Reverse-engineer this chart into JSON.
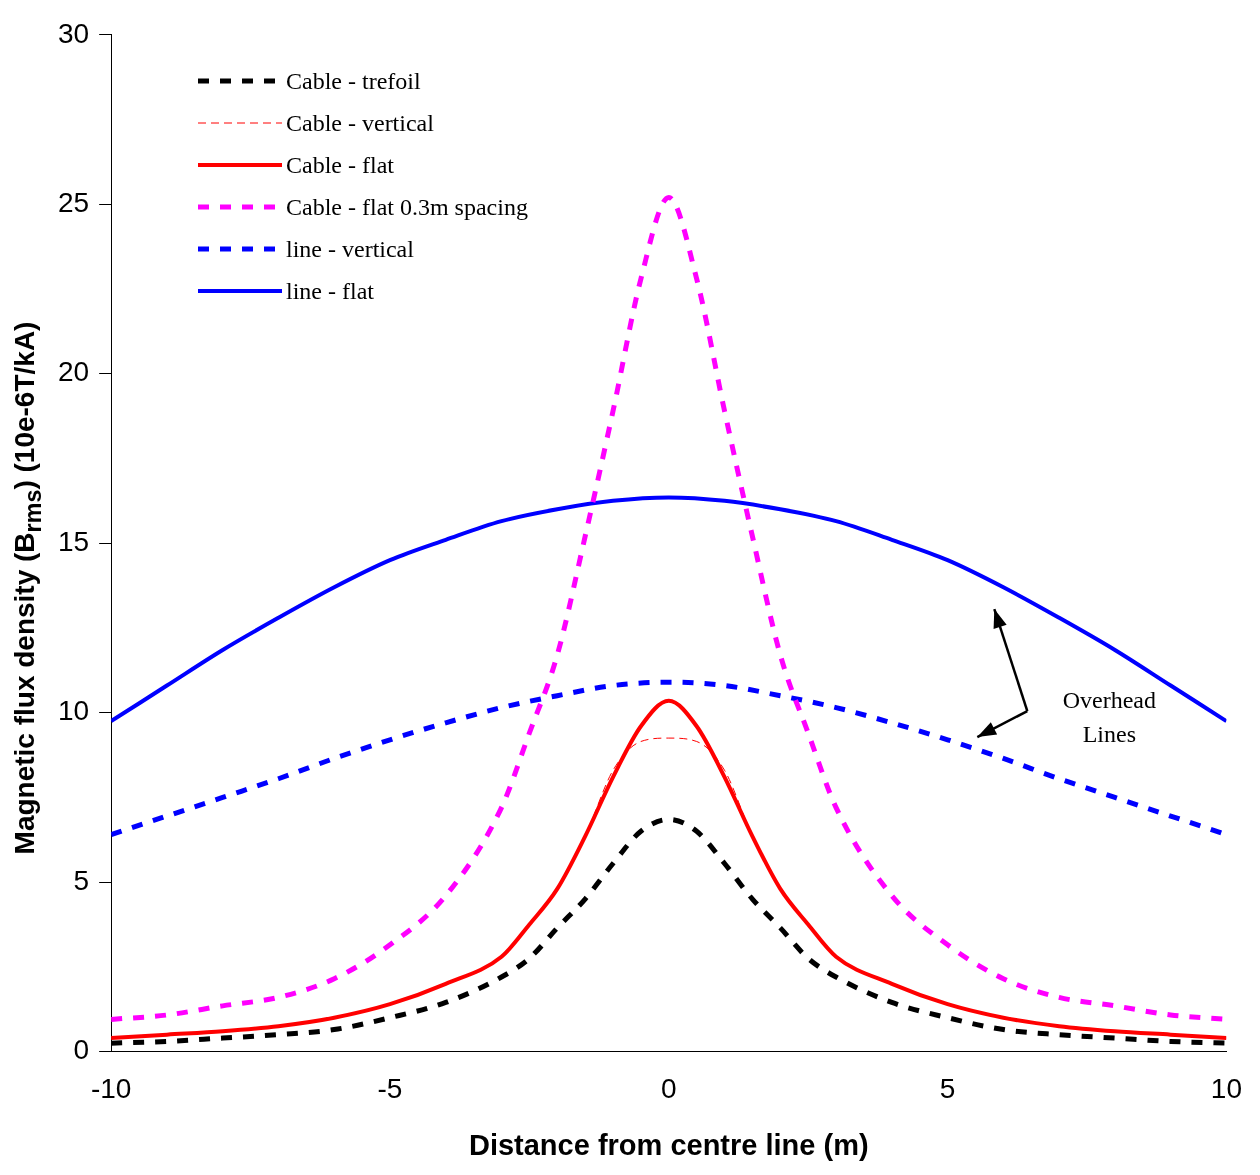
{
  "chart_data": {
    "type": "line",
    "xlabel": "Distance from centre line (m)",
    "ylabel": "Magnetic flux density (B$_{rms}$) (10e-6T/kA)",
    "xlim": [
      -10,
      10
    ],
    "xticks": [
      -10,
      -5,
      0,
      5,
      10
    ],
    "ylim": [
      0,
      30
    ],
    "yticks": [
      0,
      5,
      10,
      15,
      20,
      25,
      30
    ],
    "grid": false,
    "legend": "top left",
    "marker": "none",
    "annotations": [
      "Overhead Lines"
    ],
    "series": [
      {
        "name": "Cable - trefoil",
        "color": "#000000",
        "line_style": "dotted",
        "x": [
          -10,
          -9,
          -8,
          -7,
          -6,
          -5,
          -4,
          -3,
          -2.5,
          -2,
          -1.5,
          -1,
          -0.5,
          0,
          0.5,
          1,
          1.5,
          2,
          2.5,
          3,
          4,
          5,
          6,
          7,
          8,
          9,
          10
        ],
        "values": [
          0.25,
          0.3,
          0.4,
          0.5,
          0.65,
          1.0,
          1.45,
          2.2,
          2.75,
          3.65,
          4.5,
          5.55,
          6.5,
          6.85,
          6.5,
          5.55,
          4.5,
          3.65,
          2.75,
          2.2,
          1.45,
          1.0,
          0.65,
          0.5,
          0.4,
          0.3,
          0.25
        ]
      },
      {
        "name": "Cable - vertical",
        "color": "#ff0000",
        "line_style": "dashed",
        "x": [
          -10,
          -9,
          -8,
          -7,
          -6,
          -5,
          -4,
          -3,
          -2.5,
          -2,
          -1.5,
          -1,
          -0.5,
          0,
          0.5,
          1,
          1.5,
          2,
          2.5,
          3,
          4,
          5,
          6,
          7,
          8,
          9,
          10
        ],
        "values": [
          0.4,
          0.5,
          0.6,
          0.75,
          1.0,
          1.4,
          2.0,
          2.8,
          3.75,
          4.8,
          6.35,
          8.3,
          9.15,
          9.25,
          9.15,
          8.3,
          6.35,
          4.8,
          3.75,
          2.8,
          2.0,
          1.4,
          1.0,
          0.75,
          0.6,
          0.5,
          0.4
        ]
      },
      {
        "name": "Cable - flat",
        "color": "#ff0000",
        "line_style": "solid",
        "x": [
          -10,
          -9,
          -8,
          -7,
          -6,
          -5,
          -4,
          -3,
          -2.5,
          -2,
          -1.5,
          -1,
          -0.5,
          0,
          0.5,
          1,
          1.5,
          2,
          2.5,
          3,
          4,
          5,
          6,
          7,
          8,
          9,
          10
        ],
        "values": [
          0.4,
          0.5,
          0.6,
          0.75,
          1.0,
          1.4,
          2.0,
          2.8,
          3.75,
          4.8,
          6.35,
          8.1,
          9.6,
          10.35,
          9.6,
          8.1,
          6.35,
          4.8,
          3.75,
          2.8,
          2.0,
          1.4,
          1.0,
          0.75,
          0.6,
          0.5,
          0.4
        ]
      },
      {
        "name": "Cable - flat 0.3m spacing",
        "color": "#ff00ff",
        "line_style": "dotted",
        "x": [
          -10,
          -9,
          -8,
          -7,
          -6,
          -5,
          -4,
          -3,
          -2.5,
          -2,
          -1.5,
          -1,
          -0.5,
          0,
          0.5,
          1,
          1.5,
          2,
          2.5,
          3,
          4,
          5,
          6,
          7,
          8,
          9,
          10
        ],
        "values": [
          0.95,
          1.08,
          1.35,
          1.6,
          2.15,
          3.15,
          4.6,
          7.2,
          9.4,
          11.7,
          15.2,
          18.9,
          22.8,
          25.2,
          22.8,
          18.9,
          15.2,
          11.7,
          9.4,
          7.2,
          4.6,
          3.15,
          2.15,
          1.6,
          1.35,
          1.08,
          0.95
        ]
      },
      {
        "name": "line - vertical",
        "color": "#0000ff",
        "line_style": "dotted",
        "x": [
          -10,
          -9,
          -8,
          -7,
          -6,
          -5,
          -4,
          -3,
          -2,
          -1,
          0,
          1,
          2,
          3,
          4,
          5,
          6,
          7,
          8,
          9,
          10
        ],
        "values": [
          6.4,
          6.95,
          7.5,
          8.05,
          8.65,
          9.2,
          9.7,
          10.15,
          10.5,
          10.8,
          10.9,
          10.8,
          10.5,
          10.15,
          9.7,
          9.2,
          8.65,
          8.05,
          7.5,
          6.95,
          6.4
        ]
      },
      {
        "name": "line - flat",
        "color": "#0000ff",
        "line_style": "solid",
        "x": [
          -10,
          -9,
          -8,
          -7,
          -6,
          -5,
          -4,
          -3,
          -2,
          -1,
          0,
          1,
          2,
          3,
          4,
          5,
          6,
          7,
          8,
          9,
          10
        ],
        "values": [
          9.75,
          10.8,
          11.85,
          12.8,
          13.7,
          14.5,
          15.1,
          15.65,
          16.0,
          16.25,
          16.35,
          16.25,
          16.0,
          15.65,
          15.1,
          14.5,
          13.7,
          12.8,
          11.85,
          10.8,
          9.75
        ]
      }
    ]
  }
}
